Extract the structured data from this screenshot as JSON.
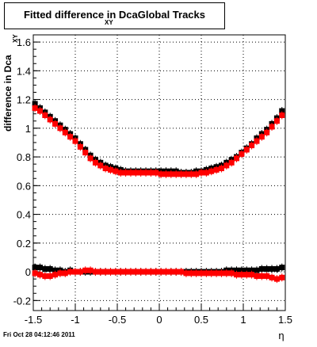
{
  "title": "Fitted difference in Dca",
  "title_subscript": "XY",
  "title_suffix": "Global Tracks",
  "timestamp": "Fri Oct 28 04:12:46 2011",
  "chart_data": {
    "type": "scatter",
    "title": "Fitted difference in Dca XY Global Tracks",
    "xlabel": "η",
    "ylabel": "difference in Dca",
    "ylabel_subscript": "XY",
    "xlim": [
      -1.5,
      1.5
    ],
    "ylim": [
      -0.27,
      1.65
    ],
    "grid": true,
    "xticks": [
      "-1.5",
      "-1",
      "-0.5",
      "0",
      "0.5",
      "1",
      "1.5"
    ],
    "yticks": [
      "-0.2",
      "0",
      "0.2",
      "0.4",
      "0.6",
      "0.8",
      "1",
      "1.2",
      "1.4",
      "1.6"
    ],
    "series": [
      {
        "color": "#000000",
        "marker": "square",
        "x": [
          -1.48,
          -1.42,
          -1.36,
          -1.3,
          -1.24,
          -1.18,
          -1.12,
          -1.06,
          -1.0,
          -0.94,
          -0.88,
          -0.82,
          -0.76,
          -0.7,
          -0.64,
          -0.58,
          -0.52,
          -0.46,
          -0.4,
          -0.34,
          -0.28,
          -0.22,
          -0.16,
          -0.1,
          -0.04,
          0.02,
          0.08,
          0.14,
          0.2,
          0.26,
          0.32,
          0.38,
          0.44,
          0.5,
          0.56,
          0.62,
          0.68,
          0.74,
          0.8,
          0.86,
          0.92,
          0.98,
          1.04,
          1.1,
          1.16,
          1.22,
          1.28,
          1.34,
          1.4,
          1.46
        ],
        "y": [
          1.17,
          1.14,
          1.11,
          1.08,
          1.05,
          1.02,
          0.99,
          0.96,
          0.93,
          0.89,
          0.85,
          0.81,
          0.78,
          0.76,
          0.74,
          0.73,
          0.72,
          0.71,
          0.7,
          0.7,
          0.7,
          0.7,
          0.7,
          0.7,
          0.7,
          0.7,
          0.7,
          0.7,
          0.7,
          0.69,
          0.69,
          0.69,
          0.7,
          0.7,
          0.71,
          0.72,
          0.73,
          0.74,
          0.76,
          0.78,
          0.8,
          0.83,
          0.86,
          0.89,
          0.93,
          0.96,
          0.99,
          1.03,
          1.07,
          1.12
        ]
      },
      {
        "color": "#ff0000",
        "marker": "square",
        "x": [
          -1.48,
          -1.42,
          -1.36,
          -1.3,
          -1.24,
          -1.18,
          -1.12,
          -1.06,
          -1.0,
          -0.94,
          -0.88,
          -0.82,
          -0.76,
          -0.7,
          -0.64,
          -0.58,
          -0.52,
          -0.46,
          -0.4,
          -0.34,
          -0.28,
          -0.22,
          -0.16,
          -0.1,
          -0.04,
          0.02,
          0.08,
          0.14,
          0.2,
          0.26,
          0.32,
          0.38,
          0.44,
          0.5,
          0.56,
          0.62,
          0.68,
          0.74,
          0.8,
          0.86,
          0.92,
          0.98,
          1.04,
          1.1,
          1.16,
          1.22,
          1.28,
          1.34,
          1.4,
          1.46
        ],
        "y": [
          1.14,
          1.12,
          1.09,
          1.06,
          1.03,
          1.0,
          0.97,
          0.94,
          0.91,
          0.87,
          0.83,
          0.79,
          0.76,
          0.74,
          0.72,
          0.71,
          0.7,
          0.69,
          0.69,
          0.69,
          0.69,
          0.69,
          0.69,
          0.69,
          0.69,
          0.68,
          0.68,
          0.68,
          0.68,
          0.68,
          0.68,
          0.68,
          0.68,
          0.69,
          0.69,
          0.7,
          0.71,
          0.72,
          0.74,
          0.76,
          0.79,
          0.82,
          0.85,
          0.88,
          0.91,
          0.94,
          0.97,
          1.01,
          1.05,
          1.09
        ]
      },
      {
        "color": "#000000",
        "marker": "square",
        "x": [
          -1.48,
          -1.42,
          -1.36,
          -1.3,
          -1.24,
          -1.18,
          -1.12,
          -1.06,
          -1.0,
          -0.94,
          -0.88,
          -0.82,
          -0.76,
          -0.7,
          -0.64,
          -0.58,
          -0.52,
          -0.46,
          -0.4,
          -0.34,
          -0.28,
          -0.22,
          -0.16,
          -0.1,
          -0.04,
          0.02,
          0.08,
          0.14,
          0.2,
          0.26,
          0.32,
          0.38,
          0.44,
          0.5,
          0.56,
          0.62,
          0.68,
          0.74,
          0.8,
          0.86,
          0.92,
          0.98,
          1.04,
          1.1,
          1.16,
          1.22,
          1.28,
          1.34,
          1.4,
          1.46
        ],
        "y": [
          0.03,
          0.03,
          0.02,
          0.02,
          0.01,
          0.01,
          0.0,
          0.01,
          0.0,
          0.0,
          0.0,
          0.0,
          0.0,
          0.0,
          0.0,
          0.0,
          0.0,
          0.0,
          0.0,
          0.0,
          0.0,
          0.0,
          0.0,
          0.0,
          0.0,
          0.0,
          0.0,
          0.0,
          0.0,
          0.0,
          0.0,
          0.0,
          0.0,
          0.0,
          0.0,
          0.0,
          0.0,
          0.0,
          0.01,
          0.01,
          0.01,
          0.01,
          0.01,
          0.01,
          0.01,
          0.02,
          0.02,
          0.02,
          0.02,
          0.03
        ]
      },
      {
        "color": "#ff0000",
        "marker": "square",
        "x": [
          -1.48,
          -1.42,
          -1.36,
          -1.3,
          -1.24,
          -1.18,
          -1.12,
          -1.06,
          -1.0,
          -0.94,
          -0.88,
          -0.82,
          -0.76,
          -0.7,
          -0.64,
          -0.58,
          -0.52,
          -0.46,
          -0.4,
          -0.34,
          -0.28,
          -0.22,
          -0.16,
          -0.1,
          -0.04,
          0.02,
          0.08,
          0.14,
          0.2,
          0.26,
          0.32,
          0.38,
          0.44,
          0.5,
          0.56,
          0.62,
          0.68,
          0.74,
          0.8,
          0.86,
          0.92,
          0.98,
          1.04,
          1.1,
          1.16,
          1.22,
          1.28,
          1.34,
          1.4,
          1.46
        ],
        "y": [
          -0.01,
          -0.02,
          -0.03,
          -0.03,
          -0.02,
          -0.01,
          -0.01,
          0.0,
          0.0,
          0.0,
          0.01,
          0.01,
          0.0,
          0.0,
          0.0,
          0.0,
          0.0,
          0.0,
          0.0,
          0.0,
          0.0,
          0.0,
          0.0,
          0.0,
          0.0,
          0.0,
          0.0,
          0.0,
          0.0,
          0.0,
          -0.01,
          -0.01,
          -0.01,
          -0.01,
          -0.01,
          -0.01,
          -0.01,
          -0.01,
          -0.01,
          -0.01,
          -0.02,
          -0.02,
          -0.02,
          -0.02,
          -0.03,
          -0.03,
          -0.03,
          -0.04,
          -0.05,
          -0.04
        ]
      }
    ]
  }
}
